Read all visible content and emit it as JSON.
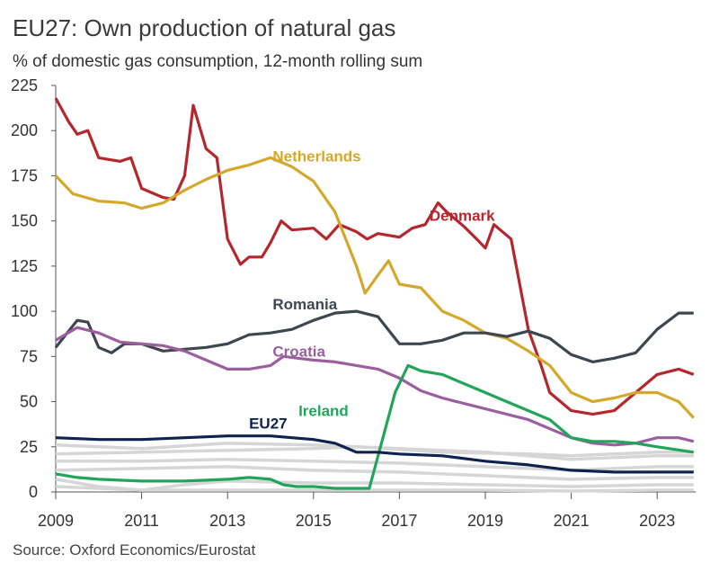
{
  "chart_data": {
    "type": "line",
    "title": "EU27: Own production of natural gas",
    "subtitle": "% of domestic gas consumption, 12-month rolling sum",
    "source": "Source: Oxford Economics/Eurostat",
    "xlim": [
      2009,
      2023.9
    ],
    "ylim": [
      0,
      225
    ],
    "xticks": [
      2009,
      2011,
      2013,
      2015,
      2017,
      2019,
      2021,
      2023
    ],
    "yticks": [
      0,
      25,
      50,
      75,
      100,
      125,
      150,
      175,
      200,
      225
    ],
    "grid": false,
    "legend": "direct labels",
    "background_series_color": "#d6d6d6",
    "background_series": [
      [
        [
          2009,
          26
        ],
        [
          2011,
          24
        ],
        [
          2013,
          27
        ],
        [
          2015,
          26
        ],
        [
          2017,
          24
        ],
        [
          2019,
          22
        ],
        [
          2021,
          18
        ],
        [
          2023,
          20
        ],
        [
          2023.85,
          20
        ]
      ],
      [
        [
          2009,
          21
        ],
        [
          2011,
          22
        ],
        [
          2013,
          23
        ],
        [
          2015,
          24
        ],
        [
          2016,
          25
        ],
        [
          2018,
          22
        ],
        [
          2020,
          21
        ],
        [
          2021,
          20
        ],
        [
          2023,
          22
        ],
        [
          2023.85,
          22
        ]
      ],
      [
        [
          2009,
          17
        ],
        [
          2011,
          17
        ],
        [
          2013,
          18
        ],
        [
          2015,
          17
        ],
        [
          2017,
          16
        ],
        [
          2019,
          14
        ],
        [
          2021,
          12
        ],
        [
          2023,
          14
        ],
        [
          2023.85,
          14
        ]
      ],
      [
        [
          2009,
          12
        ],
        [
          2011,
          13
        ],
        [
          2013,
          14
        ],
        [
          2015,
          12
        ],
        [
          2017,
          11
        ],
        [
          2019,
          9
        ],
        [
          2021,
          7
        ],
        [
          2023,
          8
        ],
        [
          2023.85,
          8
        ]
      ],
      [
        [
          2009,
          7
        ],
        [
          2010,
          3
        ],
        [
          2011,
          1
        ],
        [
          2012,
          4
        ],
        [
          2013,
          6
        ],
        [
          2015,
          5
        ],
        [
          2017,
          5
        ],
        [
          2019,
          4
        ],
        [
          2021,
          3
        ],
        [
          2023,
          4
        ],
        [
          2023.85,
          4
        ]
      ],
      [
        [
          2009,
          3
        ],
        [
          2011,
          1
        ],
        [
          2013,
          1
        ],
        [
          2015,
          1
        ],
        [
          2017,
          1
        ],
        [
          2019,
          1
        ],
        [
          2021,
          0.5
        ],
        [
          2023,
          1
        ],
        [
          2023.85,
          1
        ]
      ]
    ],
    "series": [
      {
        "name": "Denmark",
        "color": "#b3272d",
        "values": [
          [
            2009,
            218
          ],
          [
            2009.3,
            205
          ],
          [
            2009.5,
            198
          ],
          [
            2009.75,
            200
          ],
          [
            2010,
            185
          ],
          [
            2010.5,
            183
          ],
          [
            2010.75,
            185
          ],
          [
            2011,
            168
          ],
          [
            2011.5,
            163
          ],
          [
            2011.75,
            162
          ],
          [
            2012,
            175
          ],
          [
            2012.2,
            214
          ],
          [
            2012.5,
            190
          ],
          [
            2012.75,
            185
          ],
          [
            2013,
            140
          ],
          [
            2013.3,
            126
          ],
          [
            2013.5,
            130
          ],
          [
            2013.8,
            130
          ],
          [
            2014,
            138
          ],
          [
            2014.25,
            150
          ],
          [
            2014.5,
            145
          ],
          [
            2015,
            146
          ],
          [
            2015.3,
            140
          ],
          [
            2015.6,
            148
          ],
          [
            2016,
            144
          ],
          [
            2016.25,
            140
          ],
          [
            2016.5,
            143
          ],
          [
            2017,
            141
          ],
          [
            2017.3,
            146
          ],
          [
            2017.6,
            148
          ],
          [
            2017.9,
            160
          ],
          [
            2018.1,
            155
          ],
          [
            2018.5,
            147
          ],
          [
            2018.8,
            140
          ],
          [
            2019,
            135
          ],
          [
            2019.2,
            148
          ],
          [
            2019.6,
            140
          ],
          [
            2020,
            90
          ],
          [
            2020.3,
            70
          ],
          [
            2020.5,
            55
          ],
          [
            2021,
            45
          ],
          [
            2021.5,
            43
          ],
          [
            2022,
            45
          ],
          [
            2022.5,
            55
          ],
          [
            2023,
            65
          ],
          [
            2023.5,
            68
          ],
          [
            2023.85,
            65
          ]
        ]
      },
      {
        "name": "Netherlands",
        "color": "#d4a82a",
        "values": [
          [
            2009,
            175
          ],
          [
            2009.4,
            165
          ],
          [
            2010,
            161
          ],
          [
            2010.6,
            160
          ],
          [
            2011,
            157
          ],
          [
            2011.5,
            160
          ],
          [
            2012,
            167
          ],
          [
            2012.5,
            173
          ],
          [
            2013,
            178
          ],
          [
            2013.5,
            181
          ],
          [
            2014,
            185
          ],
          [
            2014.5,
            180
          ],
          [
            2015,
            172
          ],
          [
            2015.5,
            155
          ],
          [
            2016,
            125
          ],
          [
            2016.2,
            110
          ],
          [
            2016.5,
            120
          ],
          [
            2016.75,
            128
          ],
          [
            2017,
            115
          ],
          [
            2017.5,
            113
          ],
          [
            2018,
            100
          ],
          [
            2018.5,
            95
          ],
          [
            2019,
            88
          ],
          [
            2019.5,
            85
          ],
          [
            2020,
            78
          ],
          [
            2020.5,
            70
          ],
          [
            2021,
            55
          ],
          [
            2021.5,
            50
          ],
          [
            2022,
            52
          ],
          [
            2022.5,
            55
          ],
          [
            2023,
            55
          ],
          [
            2023.5,
            50
          ],
          [
            2023.85,
            41
          ]
        ]
      },
      {
        "name": "Romania",
        "color": "#3e4650",
        "values": [
          [
            2009,
            80
          ],
          [
            2009.5,
            95
          ],
          [
            2009.75,
            94
          ],
          [
            2010,
            80
          ],
          [
            2010.3,
            77
          ],
          [
            2010.6,
            82
          ],
          [
            2011,
            82
          ],
          [
            2011.5,
            78
          ],
          [
            2012,
            79
          ],
          [
            2012.5,
            80
          ],
          [
            2013,
            82
          ],
          [
            2013.5,
            87
          ],
          [
            2014,
            88
          ],
          [
            2014.5,
            90
          ],
          [
            2015,
            95
          ],
          [
            2015.5,
            99
          ],
          [
            2016,
            100
          ],
          [
            2016.5,
            97
          ],
          [
            2017,
            82
          ],
          [
            2017.5,
            82
          ],
          [
            2018,
            84
          ],
          [
            2018.5,
            88
          ],
          [
            2019,
            88
          ],
          [
            2019.5,
            86
          ],
          [
            2020,
            89
          ],
          [
            2020.5,
            85
          ],
          [
            2021,
            76
          ],
          [
            2021.5,
            72
          ],
          [
            2022,
            74
          ],
          [
            2022.5,
            77
          ],
          [
            2023,
            90
          ],
          [
            2023.5,
            99
          ],
          [
            2023.85,
            99
          ]
        ]
      },
      {
        "name": "Croatia",
        "color": "#9b5fa0",
        "values": [
          [
            2009,
            84
          ],
          [
            2009.5,
            91
          ],
          [
            2010,
            88
          ],
          [
            2010.5,
            83
          ],
          [
            2011,
            82
          ],
          [
            2011.5,
            81
          ],
          [
            2012,
            78
          ],
          [
            2012.5,
            73
          ],
          [
            2013,
            68
          ],
          [
            2013.5,
            68
          ],
          [
            2014,
            70
          ],
          [
            2014.3,
            75
          ],
          [
            2015,
            73
          ],
          [
            2015.5,
            72
          ],
          [
            2016,
            70
          ],
          [
            2016.5,
            68
          ],
          [
            2017,
            63
          ],
          [
            2017.5,
            56
          ],
          [
            2018,
            52
          ],
          [
            2018.5,
            49
          ],
          [
            2019,
            46
          ],
          [
            2019.5,
            43
          ],
          [
            2020,
            40
          ],
          [
            2020.5,
            35
          ],
          [
            2021,
            30
          ],
          [
            2021.5,
            27
          ],
          [
            2022,
            26
          ],
          [
            2022.5,
            27
          ],
          [
            2023,
            30
          ],
          [
            2023.5,
            30
          ],
          [
            2023.85,
            28
          ]
        ]
      },
      {
        "name": "Ireland",
        "color": "#22a55a",
        "values": [
          [
            2009,
            10
          ],
          [
            2009.5,
            8
          ],
          [
            2010,
            7
          ],
          [
            2011,
            6
          ],
          [
            2012,
            6
          ],
          [
            2013,
            7
          ],
          [
            2013.5,
            8
          ],
          [
            2014,
            7
          ],
          [
            2014.3,
            4
          ],
          [
            2014.6,
            3
          ],
          [
            2015,
            3
          ],
          [
            2015.5,
            2
          ],
          [
            2016,
            2
          ],
          [
            2016.3,
            2
          ],
          [
            2016.9,
            55
          ],
          [
            2017.2,
            70
          ],
          [
            2017.5,
            67
          ],
          [
            2018,
            65
          ],
          [
            2018.5,
            60
          ],
          [
            2019,
            55
          ],
          [
            2019.5,
            50
          ],
          [
            2020,
            45
          ],
          [
            2020.5,
            40
          ],
          [
            2021,
            30
          ],
          [
            2021.5,
            28
          ],
          [
            2022,
            28
          ],
          [
            2022.5,
            27
          ],
          [
            2023,
            25
          ],
          [
            2023.85,
            22
          ]
        ]
      },
      {
        "name": "EU27",
        "color": "#0e2350",
        "values": [
          [
            2009,
            30
          ],
          [
            2010,
            29
          ],
          [
            2011,
            29
          ],
          [
            2012,
            30
          ],
          [
            2013,
            31
          ],
          [
            2014,
            31
          ],
          [
            2015,
            29
          ],
          [
            2015.5,
            27
          ],
          [
            2016,
            22
          ],
          [
            2016.5,
            22
          ],
          [
            2017,
            21
          ],
          [
            2018,
            20
          ],
          [
            2019,
            17
          ],
          [
            2020,
            15
          ],
          [
            2021,
            12
          ],
          [
            2022,
            11
          ],
          [
            2023,
            11
          ],
          [
            2023.85,
            11
          ]
        ]
      }
    ],
    "labels": [
      {
        "text": "Denmark",
        "series": "Denmark",
        "at": [
          2017.7,
          150
        ]
      },
      {
        "text": "Netherlands",
        "series": "Netherlands",
        "at": [
          2014.05,
          183
        ]
      },
      {
        "text": "Romania",
        "series": "Romania",
        "at": [
          2014.05,
          101
        ]
      },
      {
        "text": "Croatia",
        "series": "Croatia",
        "at": [
          2014.05,
          75
        ]
      },
      {
        "text": "Ireland",
        "series": "Ireland",
        "at": [
          2014.65,
          42
        ]
      },
      {
        "text": "EU27",
        "series": "EU27",
        "at": [
          2013.5,
          35
        ]
      }
    ]
  }
}
